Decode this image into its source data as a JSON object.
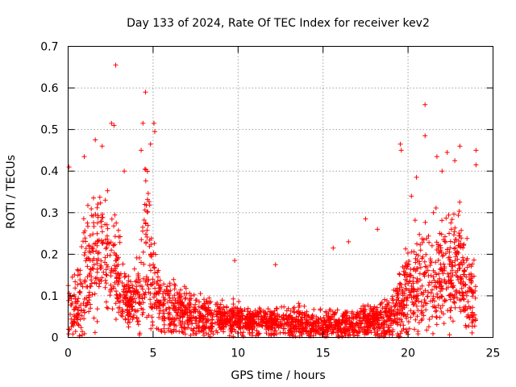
{
  "colors": {
    "series": "#ff0000",
    "grid": "#a0a0a0",
    "axis": "#000000",
    "background": "#ffffff"
  },
  "chart_data": {
    "type": "scatter",
    "title": "Day 133 of 2024, Rate Of TEC Index for receiver kev2",
    "xlabel": "GPS time / hours",
    "ylabel": "ROTI / TECUs",
    "xlim": [
      0,
      25
    ],
    "ylim": [
      0,
      0.7
    ],
    "xticks": [
      "0",
      "5",
      "10",
      "15",
      "20",
      "25"
    ],
    "yticks": [
      "0",
      "0.1",
      "0.2",
      "0.3",
      "0.4",
      "0.5",
      "0.6",
      "0.7"
    ],
    "grid": true,
    "marker": "plus",
    "series": [
      {
        "name": "ROTI",
        "envelope": {
          "hours": [
            0,
            0.5,
            0.9,
            1.3,
            1.8,
            2.3,
            2.8,
            3.3,
            3.8,
            4.3,
            4.6,
            4.9,
            5.3,
            6,
            7,
            8,
            9,
            10,
            11,
            12,
            13,
            14,
            15,
            16,
            17,
            18,
            19,
            19.5,
            20,
            20.5,
            21,
            21.5,
            22,
            22.5,
            23,
            23.5,
            24
          ],
          "base": [
            0.08,
            0.07,
            0.12,
            0.17,
            0.22,
            0.2,
            0.16,
            0.1,
            0.08,
            0.12,
            0.25,
            0.16,
            0.09,
            0.07,
            0.06,
            0.05,
            0.045,
            0.045,
            0.04,
            0.035,
            0.035,
            0.03,
            0.03,
            0.03,
            0.035,
            0.04,
            0.045,
            0.08,
            0.11,
            0.12,
            0.14,
            0.15,
            0.16,
            0.16,
            0.17,
            0.12,
            0.08
          ],
          "spread": [
            0.1,
            0.08,
            0.2,
            0.18,
            0.16,
            0.15,
            0.14,
            0.09,
            0.06,
            0.14,
            0.2,
            0.16,
            0.08,
            0.07,
            0.06,
            0.05,
            0.04,
            0.04,
            0.035,
            0.04,
            0.04,
            0.04,
            0.035,
            0.035,
            0.04,
            0.045,
            0.06,
            0.1,
            0.12,
            0.13,
            0.14,
            0.14,
            0.15,
            0.16,
            0.15,
            0.12,
            0.09
          ]
        },
        "outliers": [
          {
            "x": 0.05,
            "y": 0.41
          },
          {
            "x": 0.95,
            "y": 0.435
          },
          {
            "x": 1.6,
            "y": 0.475
          },
          {
            "x": 2.0,
            "y": 0.46
          },
          {
            "x": 2.55,
            "y": 0.515
          },
          {
            "x": 2.7,
            "y": 0.51
          },
          {
            "x": 2.8,
            "y": 0.655
          },
          {
            "x": 3.3,
            "y": 0.4
          },
          {
            "x": 4.4,
            "y": 0.515
          },
          {
            "x": 4.55,
            "y": 0.59
          },
          {
            "x": 4.85,
            "y": 0.465
          },
          {
            "x": 5.05,
            "y": 0.515
          },
          {
            "x": 5.1,
            "y": 0.495
          },
          {
            "x": 4.3,
            "y": 0.45
          },
          {
            "x": 19.55,
            "y": 0.465
          },
          {
            "x": 19.6,
            "y": 0.45
          },
          {
            "x": 20.2,
            "y": 0.34
          },
          {
            "x": 20.5,
            "y": 0.385
          },
          {
            "x": 21.0,
            "y": 0.56
          },
          {
            "x": 21.0,
            "y": 0.485
          },
          {
            "x": 21.7,
            "y": 0.435
          },
          {
            "x": 22.0,
            "y": 0.4
          },
          {
            "x": 22.3,
            "y": 0.445
          },
          {
            "x": 23.05,
            "y": 0.46
          },
          {
            "x": 24.0,
            "y": 0.45
          },
          {
            "x": 24.0,
            "y": 0.415
          },
          {
            "x": 22.75,
            "y": 0.425
          },
          {
            "x": 15.6,
            "y": 0.215
          },
          {
            "x": 16.5,
            "y": 0.23
          },
          {
            "x": 17.5,
            "y": 0.285
          },
          {
            "x": 9.8,
            "y": 0.185
          },
          {
            "x": 12.2,
            "y": 0.175
          },
          {
            "x": 18.2,
            "y": 0.26
          }
        ]
      }
    ]
  }
}
